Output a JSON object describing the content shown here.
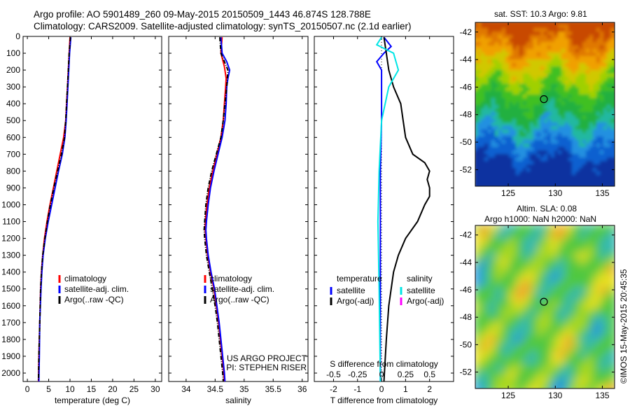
{
  "header": {
    "title_line1": "Argo profile: AO 5901489_260 09-May-2015 20150509_1443 46.874S 128.788E",
    "title_line2": "Climatology: CARS2009. Satellite-adjusted climatology: synTS_20150507.nc (2.1d earlier)"
  },
  "colors": {
    "climatology": "#ff0000",
    "satellite_adj": "#0000ff",
    "argo": "#000000",
    "salinity_satellite": "#00e5e5",
    "salinity_argo_adj": "#ff00ff"
  },
  "chart_data": [
    {
      "type": "line",
      "xlabel": "temperature (deg C)",
      "ylabel": "",
      "xlim": [
        -1,
        31.5
      ],
      "ylim": [
        2050,
        0
      ],
      "xticks": [
        0,
        5,
        10,
        15,
        20,
        25,
        30
      ],
      "yticks": [
        0,
        100,
        200,
        300,
        400,
        500,
        600,
        700,
        800,
        900,
        1000,
        1100,
        1200,
        1300,
        1400,
        1500,
        1600,
        1700,
        1800,
        1900,
        2000
      ],
      "grid": false,
      "legend": {
        "placement": "lower-center",
        "entries": [
          "climatology",
          "satellite-adj. clim.",
          "Argo(..raw -QC)"
        ]
      },
      "series": [
        {
          "name": "climatology",
          "color": "#ff0000",
          "y": [
            5,
            100,
            200,
            300,
            400,
            500,
            600,
            700,
            800,
            900,
            1000,
            1100,
            1200,
            1300,
            1400,
            1500,
            1700,
            1900,
            2050
          ],
          "x": [
            10.0,
            9.8,
            9.6,
            9.4,
            9.2,
            9.0,
            8.5,
            7.7,
            6.9,
            6.1,
            5.3,
            4.6,
            4.0,
            3.6,
            3.3,
            3.1,
            2.9,
            2.7,
            2.6
          ]
        },
        {
          "name": "satellite-adj. clim.",
          "color": "#0000ff",
          "y": [
            5,
            100,
            200,
            300,
            400,
            500,
            600,
            700,
            800,
            900,
            1000,
            1100,
            1200,
            1300,
            1400,
            1500,
            1700,
            1900,
            2050
          ],
          "x": [
            10.2,
            9.9,
            9.7,
            9.5,
            9.3,
            9.1,
            8.8,
            8.2,
            7.3,
            6.5,
            5.7,
            4.9,
            4.2,
            3.7,
            3.4,
            3.2,
            2.9,
            2.8,
            2.7
          ]
        },
        {
          "name": "Argo(..raw -QC)",
          "color": "#000000",
          "y": [
            5,
            100,
            200,
            300,
            400,
            500,
            600,
            700,
            800,
            900,
            1000,
            1100,
            1200,
            1300,
            1400,
            1500,
            1700,
            1900,
            2050
          ],
          "x": [
            10.1,
            9.8,
            9.6,
            9.4,
            9.2,
            9.0,
            8.7,
            8.0,
            7.1,
            6.2,
            5.4,
            4.7,
            4.1,
            3.6,
            3.3,
            3.1,
            2.9,
            2.7,
            2.6
          ]
        }
      ]
    },
    {
      "type": "line",
      "xlabel": "salinity",
      "ylabel": "",
      "xlim": [
        33.7,
        36.1
      ],
      "ylim": [
        2050,
        0
      ],
      "xticks": [
        34,
        34.5,
        35,
        35.5,
        36
      ],
      "grid": false,
      "legend": {
        "placement": "lower-center",
        "entries": [
          "climatology",
          "satellite-adj. clim.",
          "Argo(..raw -QC)"
        ]
      },
      "annotations": [
        "US ARGO PROJECT",
        "PI: STEPHEN RISER"
      ],
      "series": [
        {
          "name": "climatology",
          "color": "#ff0000",
          "y": [
            5,
            100,
            180,
            250,
            300,
            400,
            500,
            600,
            700,
            800,
            900,
            1000,
            1100,
            1150,
            1200,
            1300,
            1400,
            1500,
            1600,
            1700,
            1800,
            1900,
            2000,
            2050
          ],
          "x": [
            34.62,
            34.6,
            34.66,
            34.69,
            34.68,
            34.66,
            34.64,
            34.6,
            34.53,
            34.46,
            34.4,
            34.36,
            34.33,
            34.33,
            34.34,
            34.37,
            34.42,
            34.48,
            34.52,
            34.56,
            34.59,
            34.62,
            34.65,
            34.66
          ]
        },
        {
          "name": "satellite-adj. clim.",
          "color": "#0000ff",
          "y": [
            5,
            100,
            150,
            200,
            250,
            300,
            400,
            500,
            600,
            700,
            800,
            900,
            1000,
            1100,
            1150,
            1200,
            1300,
            1400,
            1500,
            1600,
            1700,
            1800,
            1900,
            2000,
            2050
          ],
          "x": [
            34.6,
            34.62,
            34.7,
            34.75,
            34.72,
            34.7,
            34.69,
            34.67,
            34.62,
            34.55,
            34.48,
            34.42,
            34.38,
            34.35,
            34.34,
            34.35,
            34.38,
            34.43,
            34.49,
            34.53,
            34.57,
            34.6,
            34.63,
            34.66,
            34.67
          ]
        },
        {
          "name": "Argo(..raw -QC)",
          "color": "#000000",
          "y": [
            5,
            100,
            200,
            300,
            400,
            500,
            600,
            700,
            800,
            900,
            1000,
            1100,
            1150,
            1200,
            1300,
            1400,
            1500,
            1600,
            1700,
            1800,
            1900,
            2000,
            2050
          ],
          "x": [
            34.58,
            34.6,
            34.72,
            34.7,
            34.67,
            34.64,
            34.6,
            34.52,
            34.44,
            34.38,
            34.34,
            34.32,
            34.31,
            34.32,
            34.35,
            34.4,
            34.45,
            34.5,
            34.54,
            34.57,
            34.6,
            34.63,
            34.64
          ]
        }
      ]
    },
    {
      "type": "line",
      "xlabel": "T difference from climatology",
      "top_label": "S difference from climatology",
      "ylabel": "",
      "xlim": [
        -2.8,
        3
      ],
      "ylim": [
        2050,
        0
      ],
      "xticks": [
        -2,
        -1,
        0,
        1,
        2
      ],
      "top_ticks": [
        "-0.5",
        "-0.25",
        "0",
        "0.25",
        "0.5"
      ],
      "top_tick_values": [
        -2,
        -1,
        0,
        1,
        2
      ],
      "grid": false,
      "legend": {
        "placement": "lower-center",
        "temperature_title": "temperature",
        "salinity_title": "salinity",
        "entries": [
          "satellite",
          "Argo(-adj)",
          "satellite",
          "Argo(-adj)"
        ]
      },
      "series": [
        {
          "name": "temperature satellite",
          "color": "#0000ff",
          "y": [
            5,
            60,
            100,
            150,
            200,
            300,
            500,
            800,
            1200,
            1600,
            2050
          ],
          "x": [
            0.1,
            0.4,
            0.1,
            -0.2,
            0.0,
            0.0,
            0.0,
            -0.05,
            -0.05,
            -0.05,
            -0.05
          ]
        },
        {
          "name": "temperature Argo(-adj)",
          "color": "#000000",
          "y": [
            5,
            100,
            200,
            300,
            400,
            500,
            600,
            700,
            750,
            800,
            850,
            900,
            950,
            1000,
            1100,
            1200,
            1300,
            1400,
            1600,
            1800,
            2050
          ],
          "x": [
            0.1,
            0.2,
            0.3,
            0.5,
            0.8,
            0.9,
            1.0,
            1.3,
            1.8,
            2.0,
            1.9,
            2.0,
            2.0,
            1.8,
            1.5,
            1.0,
            0.7,
            0.5,
            0.3,
            0.2,
            0.1
          ]
        },
        {
          "name": "salinity satellite",
          "color": "#00e5e5",
          "y": [
            5,
            50,
            100,
            200,
            300,
            500,
            800,
            1100,
            1500,
            2050
          ],
          "x": [
            0.0,
            -0.2,
            0.5,
            0.7,
            0.3,
            0.0,
            -0.1,
            -0.15,
            -0.1,
            -0.05
          ]
        },
        {
          "name": "salinity Argo(-adj)",
          "color": "#ff00ff",
          "y": [],
          "x": []
        }
      ]
    },
    {
      "type": "heatmap",
      "title": "sat. SST: 10.3 Argo: 9.81",
      "xticks": [
        125,
        130,
        135
      ],
      "yticks": [
        -42,
        -44,
        -46,
        -48,
        -50,
        -52
      ],
      "xlim": [
        121.5,
        136.3
      ],
      "ylim": [
        -53.2,
        -41.3
      ],
      "marker": {
        "lon": 128.788,
        "lat": -46.874
      },
      "colorbar": false
    },
    {
      "type": "heatmap",
      "title_line1": "Altim. SLA: 0.08",
      "title_line2": "Argo h1000: NaN h2000: NaN",
      "xticks": [
        125,
        130,
        135
      ],
      "yticks": [
        -42,
        -44,
        -46,
        -48,
        -50,
        -52
      ],
      "xlim": [
        121.5,
        136.3
      ],
      "ylim": [
        -53.2,
        -41.3
      ],
      "marker": {
        "lon": 128.788,
        "lat": -46.874
      },
      "colorbar": false
    }
  ],
  "footer": {
    "credit": "©IMOS 15-May-2015 20:45:35"
  }
}
